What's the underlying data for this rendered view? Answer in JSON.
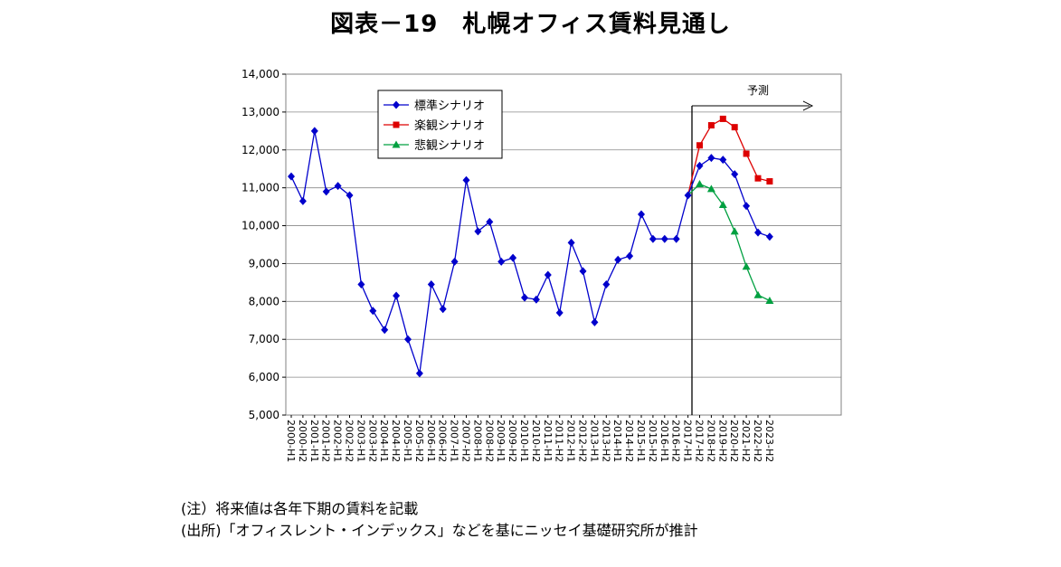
{
  "title": "図表－19　札幌オフィス賃料見通し",
  "notes": [
    "(注）将来値は各年下期の賃料を記載",
    "(出所)「オフィスレント・インデックス」などを基にニッセイ基礎研究所が推計"
  ],
  "forecast_label": "予測",
  "colors": {
    "standard": "#0000CC",
    "optimistic": "#DD0000",
    "pessimistic": "#00A040"
  },
  "chart_data": {
    "type": "line",
    "title": "図表－19　札幌オフィス賃料見通し",
    "xlabel": "",
    "ylabel": "",
    "ylim": [
      5000,
      14000
    ],
    "yticks": [
      5000,
      6000,
      7000,
      8000,
      9000,
      10000,
      11000,
      12000,
      13000,
      14000
    ],
    "ytick_labels": [
      "5,000",
      "6,000",
      "7,000",
      "8,000",
      "9,000",
      "10,000",
      "11,000",
      "12,000",
      "13,000",
      "14,000"
    ],
    "grid": true,
    "legend_position": "top-left",
    "categories": [
      "2000-H1",
      "2000-H2",
      "2001-H1",
      "2001-H2",
      "2002-H1",
      "2002-H2",
      "2003-H1",
      "2003-H2",
      "2004-H1",
      "2004-H2",
      "2005-H1",
      "2005-H2",
      "2006-H1",
      "2006-H2",
      "2007-H1",
      "2007-H2",
      "2008-H1",
      "2008-H2",
      "2009-H1",
      "2009-H2",
      "2010-H1",
      "2010-H2",
      "2011-H1",
      "2011-H2",
      "2012-H1",
      "2012-H2",
      "2013-H1",
      "2013-H2",
      "2014-H1",
      "2014-H2",
      "2015-H1",
      "2015-H2",
      "2016-H1",
      "2016-H2",
      "2017-H1",
      "2017-H2",
      "2018-H2",
      "2019-H2",
      "2020-H2",
      "2021-H2",
      "2022-H2",
      "2023-H2"
    ],
    "series": [
      {
        "name": "標準シナリオ",
        "marker": "diamond",
        "values": [
          11300,
          10650,
          12500,
          10900,
          11050,
          10800,
          8450,
          7750,
          7250,
          8150,
          7000,
          6100,
          8450,
          7800,
          9050,
          11200,
          9850,
          10100,
          9050,
          9150,
          8100,
          8050,
          8700,
          7700,
          9550,
          8800,
          7450,
          8450,
          9100,
          9200,
          10300,
          9650,
          9650,
          9650,
          10800,
          11580,
          11790,
          11740,
          11360,
          10520,
          9820,
          9710
        ]
      },
      {
        "name": "楽観シナリオ",
        "marker": "square",
        "values": [
          null,
          null,
          null,
          null,
          null,
          null,
          null,
          null,
          null,
          null,
          null,
          null,
          null,
          null,
          null,
          null,
          null,
          null,
          null,
          null,
          null,
          null,
          null,
          null,
          null,
          null,
          null,
          null,
          null,
          null,
          null,
          null,
          null,
          null,
          10800,
          12120,
          12650,
          12820,
          12600,
          11900,
          11250,
          11170
        ]
      },
      {
        "name": "悲観シナリオ",
        "marker": "triangle",
        "values": [
          null,
          null,
          null,
          null,
          null,
          null,
          null,
          null,
          null,
          null,
          null,
          null,
          null,
          null,
          null,
          null,
          null,
          null,
          null,
          null,
          null,
          null,
          null,
          null,
          null,
          null,
          null,
          null,
          null,
          null,
          null,
          null,
          null,
          null,
          10800,
          11100,
          10970,
          10550,
          9850,
          8920,
          8170,
          8020
        ]
      }
    ]
  }
}
